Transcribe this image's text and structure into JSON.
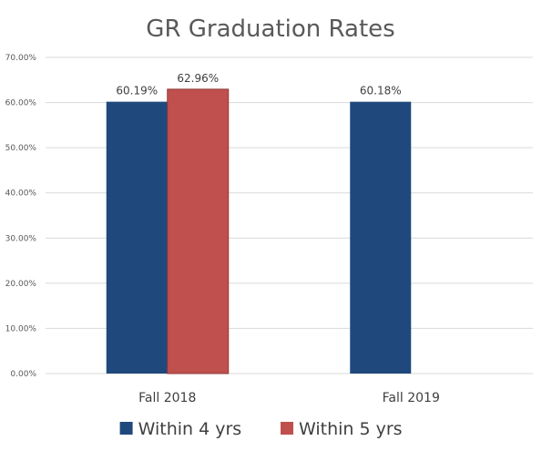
{
  "chart_data": {
    "type": "bar",
    "title": "GR Graduation Rates",
    "categories": [
      "Fall 2018",
      "Fall 2019"
    ],
    "series": [
      {
        "name": "Within 4 yrs",
        "color": "#1F497D",
        "values": [
          60.19,
          60.18
        ],
        "labels": [
          "60.19%",
          "60.18%"
        ]
      },
      {
        "name": "Within 5 yrs",
        "color": "#C0504D",
        "values": [
          62.96,
          null
        ],
        "labels": [
          "62.96%",
          null
        ]
      }
    ],
    "ylim": [
      0,
      70
    ],
    "yticks": [
      0,
      10,
      20,
      30,
      40,
      50,
      60,
      70
    ],
    "ytick_labels": [
      "0.00%",
      "10.00%",
      "20.00%",
      "30.00%",
      "40.00%",
      "50.00%",
      "60.00%",
      "70.00%"
    ],
    "xlabel": "",
    "ylabel": "",
    "grid": true,
    "legend_position": "bottom",
    "gridline_color": "#D9D9D9"
  }
}
